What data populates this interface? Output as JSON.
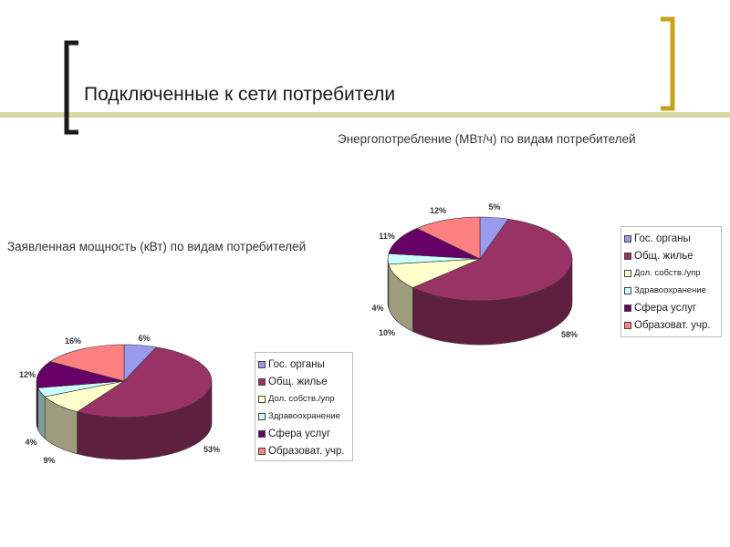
{
  "slide": {
    "title": "Подключенные к сети потребители"
  },
  "colors": {
    "band": "#d8d9a4",
    "bracket_left": "#1a1a1a",
    "bracket_right": "#c8a21c"
  },
  "chart_data": [
    {
      "type": "pie",
      "title": "Энергопотребление (МВт/ч) по видам потребителей",
      "categories": [
        "Гос. органы",
        "Общ. жилье",
        "Дол. собств./упр",
        "Здравоохранение",
        "Сфера услуг",
        "Образоват. учр."
      ],
      "values": [
        5,
        58,
        10,
        4,
        11,
        12
      ],
      "value_labels": [
        "5%",
        "58%",
        "10%",
        "4%",
        "11%",
        "12%"
      ],
      "colors": [
        "#9a9aef",
        "#993366",
        "#ffffcc",
        "#ccffff",
        "#660066",
        "#ff8080"
      ],
      "legend_small": [
        false,
        false,
        true,
        true,
        false,
        false
      ],
      "legend": "right"
    },
    {
      "type": "pie",
      "title": "Заявленная мощность (кВт) по видам потребителей",
      "categories": [
        "Гос. органы",
        "Общ. жилье",
        "Дол. собств./упр",
        "Здравоохранение",
        "Сфера услуг",
        "Образоват. учр."
      ],
      "values": [
        6,
        53,
        9,
        4,
        12,
        16
      ],
      "value_labels": [
        "6%",
        "53%",
        "9%",
        "4%",
        "12%",
        "16%"
      ],
      "colors": [
        "#9a9aef",
        "#993366",
        "#ffffcc",
        "#ccffff",
        "#660066",
        "#ff8080"
      ],
      "legend_small": [
        false,
        false,
        true,
        true,
        false,
        false
      ],
      "legend": "right"
    }
  ]
}
